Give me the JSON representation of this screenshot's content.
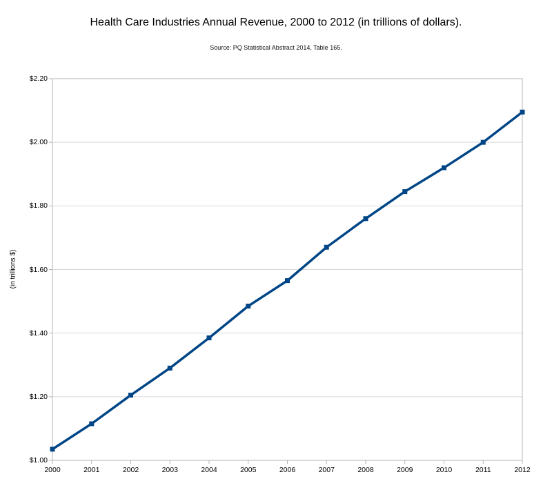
{
  "header": {
    "title": "Health Care Industries Annual Revenue, 2000 to 2012 (in trillions of dollars).",
    "source": "Source: PQ Statistical Abstract 2014, Table 165."
  },
  "chart_data": {
    "type": "line",
    "title": "Health Care Industries Annual Revenue, 2000 to 2012 (in trillions of dollars).",
    "subtitle": "Source: PQ Statistical Abstract 2014, Table 165.",
    "categories": [
      "2000",
      "2001",
      "2002",
      "2003",
      "2004",
      "2005",
      "2006",
      "2007",
      "2008",
      "2009",
      "2010",
      "2011",
      "2012"
    ],
    "series": [
      {
        "name": "Annual revenue",
        "values": [
          1.035,
          1.115,
          1.205,
          1.29,
          1.385,
          1.485,
          1.565,
          1.67,
          1.76,
          1.845,
          1.92,
          2.0,
          2.095
        ]
      }
    ],
    "xlabel": "",
    "ylabel": "(in trillions $)",
    "ylim": [
      1.0,
      2.2
    ],
    "ytick_values": [
      1.0,
      1.2,
      1.4,
      1.6,
      1.8,
      2.0,
      2.2
    ],
    "ytick_labels": [
      "$1.00",
      "$1.20",
      "$1.40",
      "$1.60",
      "$1.80",
      "$2.00",
      "$2.20"
    ],
    "grid": "horizontal",
    "legend": "none",
    "marker": "square",
    "colors": {
      "line": "#004586",
      "marker": "#004586",
      "grid": "#d9d9d9",
      "axis": "#b5b5b5",
      "text": "#000000",
      "background": "#ffffff"
    }
  }
}
